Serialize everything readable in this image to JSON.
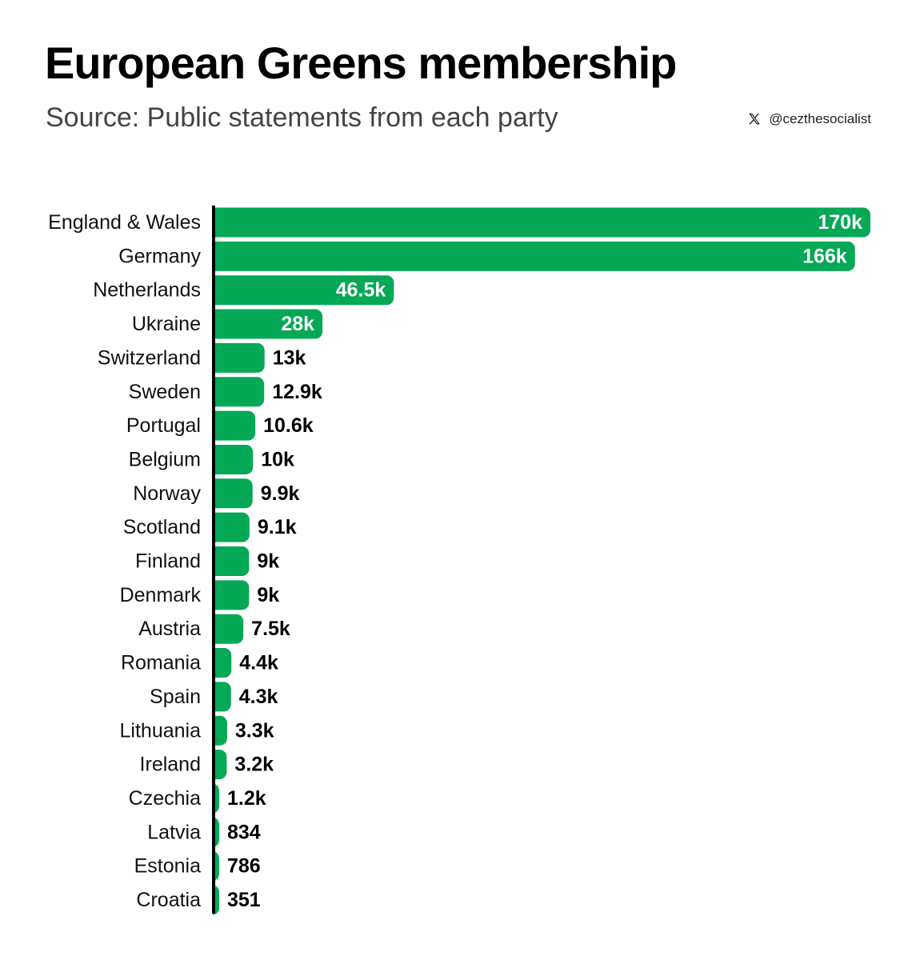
{
  "header": {
    "title": "European Greens membership",
    "subtitle": "Source: Public statements from each party",
    "credit": "@cezthesocialist",
    "credit_icon": "x-logo-icon"
  },
  "colors": {
    "bar": "#05a855",
    "axis": "#000000",
    "label_inside": "#ffffff",
    "label_outside": "#000000"
  },
  "chart_data": {
    "type": "bar",
    "orientation": "horizontal",
    "title": "European Greens membership",
    "subtitle": "Source: Public statements from each party",
    "xlabel": "",
    "ylabel": "",
    "xlim": [
      0,
      170000
    ],
    "grid": false,
    "categories": [
      "England & Wales",
      "Germany",
      "Netherlands",
      "Ukraine",
      "Switzerland",
      "Sweden",
      "Portugal",
      "Belgium",
      "Norway",
      "Scotland",
      "Finland",
      "Denmark",
      "Austria",
      "Romania",
      "Spain",
      "Lithuania",
      "Ireland",
      "Czechia",
      "Latvia",
      "Estonia",
      "Croatia"
    ],
    "values": [
      170000,
      166000,
      46500,
      28000,
      13000,
      12900,
      10600,
      10000,
      9900,
      9100,
      9000,
      9000,
      7500,
      4400,
      4300,
      3300,
      3200,
      1200,
      834,
      786,
      351
    ],
    "value_labels": [
      "170k",
      "166k",
      "46.5k",
      "28k",
      "13k",
      "12.9k",
      "10.6k",
      "10k",
      "9.9k",
      "9.1k",
      "9k",
      "9k",
      "7.5k",
      "4.4k",
      "4.3k",
      "3.3k",
      "3.2k",
      "1.2k",
      "834",
      "786",
      "351"
    ]
  }
}
